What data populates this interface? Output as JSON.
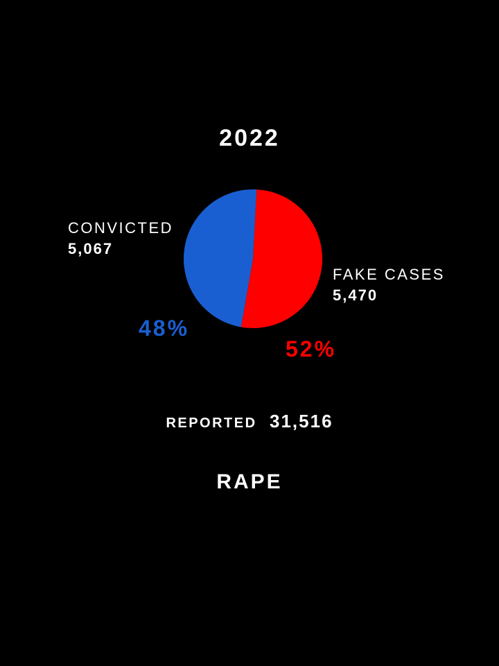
{
  "chart_data": {
    "type": "pie",
    "title": "2022",
    "slices": [
      {
        "label": "CONVICTED",
        "value": 5067,
        "value_text": "5,067",
        "percent_text": "48%",
        "color": "#1a5fd1"
      },
      {
        "label": "FAKE CASES",
        "value": 5470,
        "value_text": "5,470",
        "percent_text": "52%",
        "color": "#ff0000"
      }
    ],
    "footer": {
      "label": "REPORTED",
      "value": "31,516"
    },
    "category": "RAPE"
  },
  "colors": {
    "background": "#000000",
    "text": "#ffffff"
  }
}
